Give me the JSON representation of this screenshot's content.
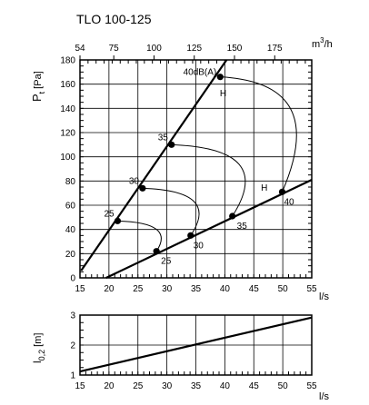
{
  "chart_data": [
    {
      "type": "line",
      "title": "TLO 100-125",
      "xlabel": "l/s",
      "ylabel_main": "P",
      "ylabel_sub": "t",
      "ylabel_unit": "[Pa]",
      "x2label_main": "m",
      "x2label_sup": "3",
      "x2label_tail": "/h",
      "xlim": [
        15,
        55
      ],
      "ylim": [
        0,
        180
      ],
      "grid": true,
      "x_ticks": [
        "15",
        "20",
        "25",
        "30",
        "35",
        "40",
        "45",
        "50",
        "55"
      ],
      "y_ticks": [
        "0",
        "20",
        "40",
        "60",
        "80",
        "100",
        "120",
        "140",
        "160",
        "180"
      ],
      "x2_ticks": [
        "54",
        "75",
        "100",
        "125",
        "150",
        "175"
      ],
      "series": [
        {
          "x": [
            15.2,
            40.3
          ],
          "y": [
            6,
            180
          ]
        },
        {
          "x": [
            19.5,
            55
          ],
          "y": [
            0,
            81
          ]
        }
      ],
      "points": [
        {
          "x": 21.5,
          "y": 47,
          "label": "25"
        },
        {
          "x": 25.8,
          "y": 74,
          "label": "30"
        },
        {
          "x": 30.8,
          "y": 110,
          "label": "35"
        },
        {
          "x": 39.2,
          "y": 166,
          "label": "40dB(A)"
        },
        {
          "x": 28.2,
          "y": 22,
          "label": "25"
        },
        {
          "x": 34.1,
          "y": 35,
          "label": "30"
        },
        {
          "x": 41.3,
          "y": 51,
          "label": "35"
        },
        {
          "x": 49.9,
          "y": 71,
          "label": "40"
        }
      ],
      "markers": [
        {
          "label": "H",
          "x": 39.7,
          "y": 153
        },
        {
          "label": "H",
          "x": 46.8,
          "y": 75
        }
      ]
    },
    {
      "type": "line",
      "xlabel": "l/s",
      "ylabel_main": "l",
      "ylabel_sub": "0,2",
      "ylabel_unit": "[m]",
      "xlim": [
        15,
        55
      ],
      "ylim": [
        1,
        3
      ],
      "grid": true,
      "x_ticks": [
        "15",
        "20",
        "25",
        "30",
        "35",
        "40",
        "45",
        "50",
        "55"
      ],
      "y_ticks": [
        "1",
        "2",
        "3"
      ],
      "series": [
        {
          "x": [
            15,
            55
          ],
          "y": [
            1.12,
            2.92
          ]
        }
      ]
    }
  ]
}
